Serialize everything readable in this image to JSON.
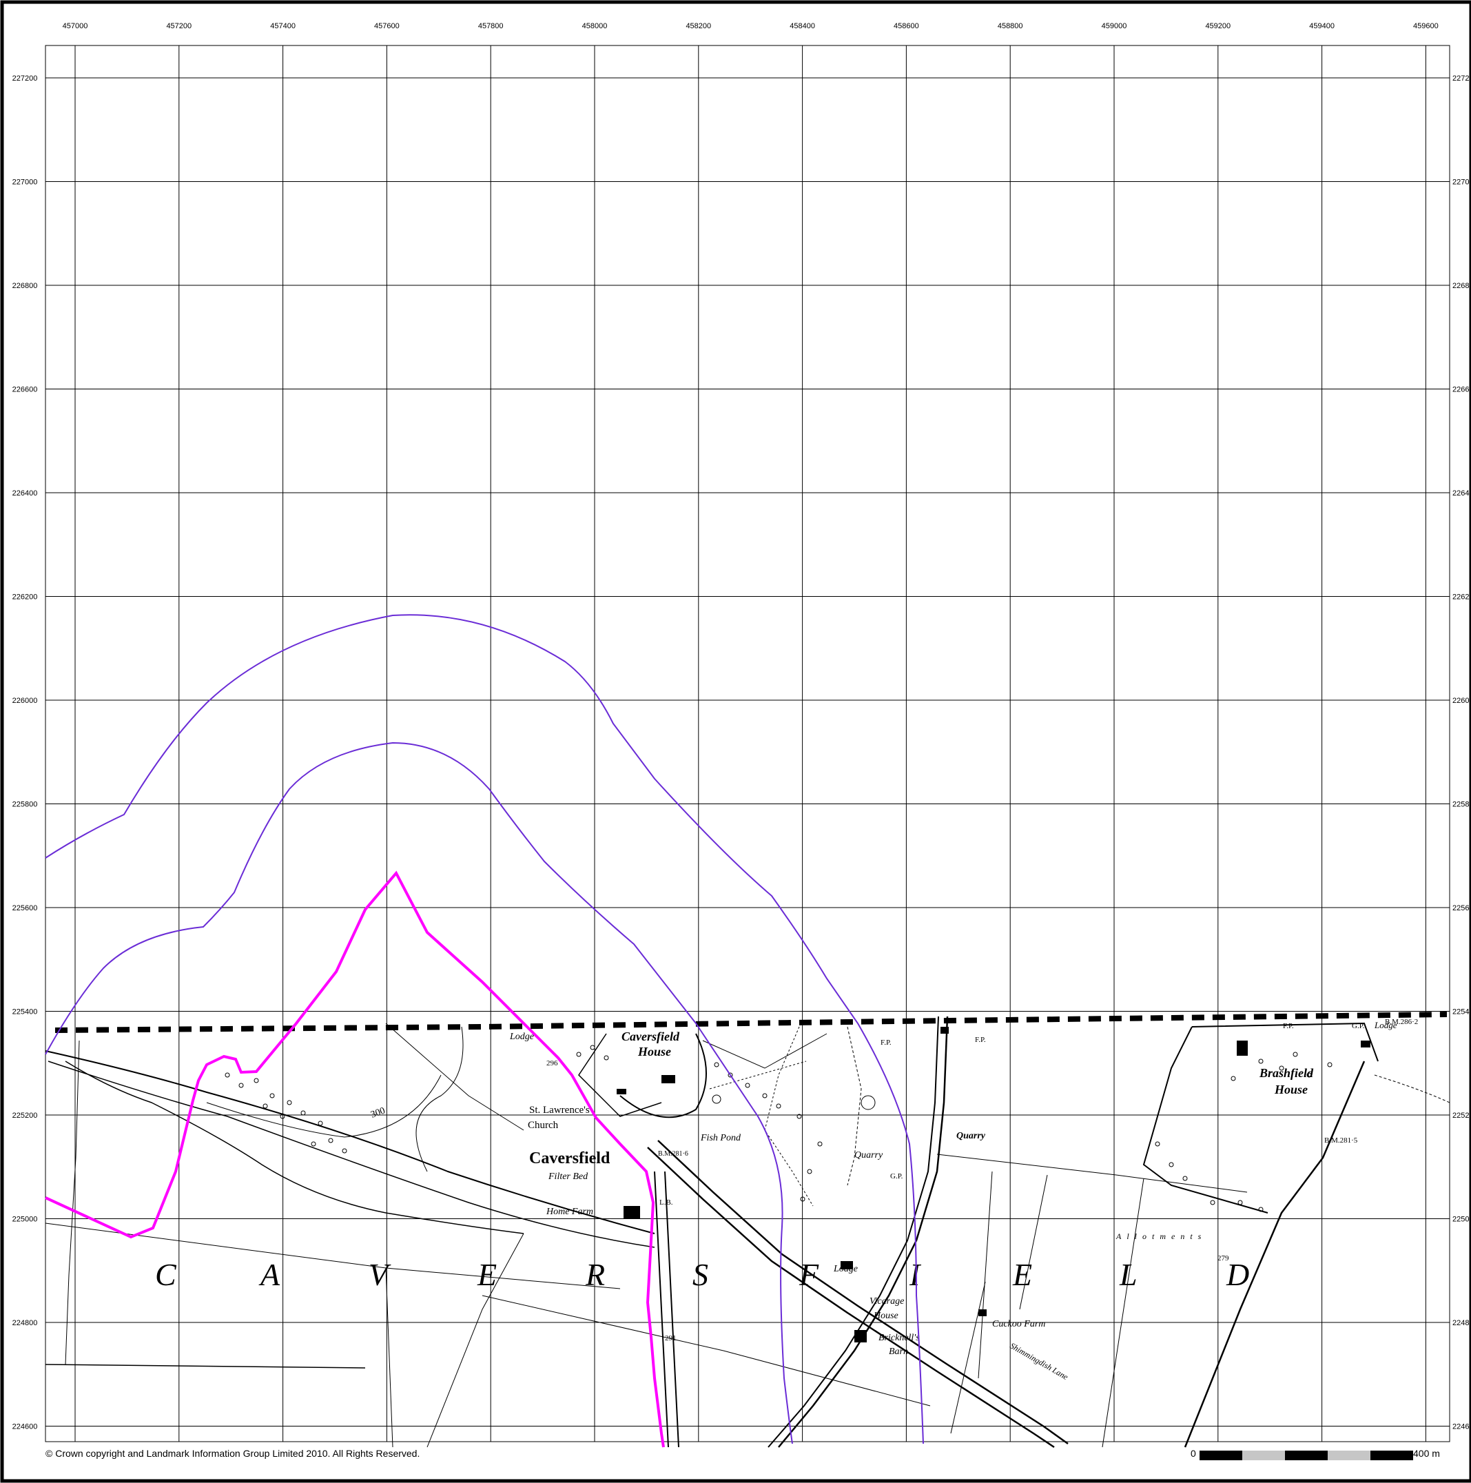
{
  "map": {
    "easting_ticks": [
      "457000",
      "457200",
      "457400",
      "457600",
      "457800",
      "458000",
      "458200",
      "458400",
      "458600",
      "458800",
      "459000",
      "459200",
      "459400",
      "459600"
    ],
    "northing_ticks": [
      "227200",
      "227000",
      "226800",
      "226600",
      "226400",
      "226200",
      "226000",
      "225800",
      "225600",
      "225400",
      "225200",
      "225000",
      "224800",
      "224600"
    ],
    "northing_ticks_right": [
      "2272",
      "2270",
      "2268",
      "2266",
      "2264",
      "2262",
      "2260",
      "2258",
      "2256",
      "2254",
      "2252",
      "2250",
      "2248",
      "2246"
    ],
    "copyright": "© Crown copyright and Landmark Information Group Limited 2010.  All Rights Reserved.",
    "scale_bar": {
      "start_label": "0",
      "end_label": "400 m"
    },
    "colors": {
      "site_boundary": "#ff00ff",
      "buffer": "#6a2cd6",
      "grid": "#000000",
      "map_edge_dashed": "#000000"
    },
    "place_labels": {
      "parish_letters": [
        "C",
        "A",
        "V",
        "E",
        "R",
        "S",
        "F",
        "I",
        "E",
        "L",
        "D"
      ],
      "caversfield": "Caversfield",
      "caversfield_house_1": "Caversfield",
      "caversfield_house_2": "House",
      "st_lawrence_1": "St. Lawrence's",
      "st_lawrence_2": "Church",
      "filter_bed": "Filter Bed",
      "home_farm": "Home Farm",
      "lodge_left": "Lodge",
      "fish_pond": "Fish Pond",
      "quarry_1": "Quarry",
      "quarry_2": "Quarry",
      "lodge_mid": "Lodge",
      "vicarage_1": "Vicarage",
      "vicarage_2": "House",
      "bricknells_1": "Bricknell's",
      "bricknells_2": "Barn",
      "cuckoo_farm": "Cuckoo Farm",
      "shimmingdish_lane": "Shimmingdish Lane",
      "allotments": "Allotments",
      "brashfield_1": "Brashfield",
      "brashfield_2": "House",
      "lodge_right": "Lodge",
      "bm_2862": "B.M.286·2",
      "bm_2815": "B.M.281·5",
      "bm_281": "B.M.281·6",
      "contour_300": "300",
      "spot_296": "296",
      "spot_291": "291",
      "spot_279": "279",
      "fp_1": "F.P.",
      "fp_2": "F.P.",
      "fp_3": "F.P.",
      "gp_1": "G.P.",
      "gp_2": "G.P.",
      "lb": "L.B."
    }
  }
}
